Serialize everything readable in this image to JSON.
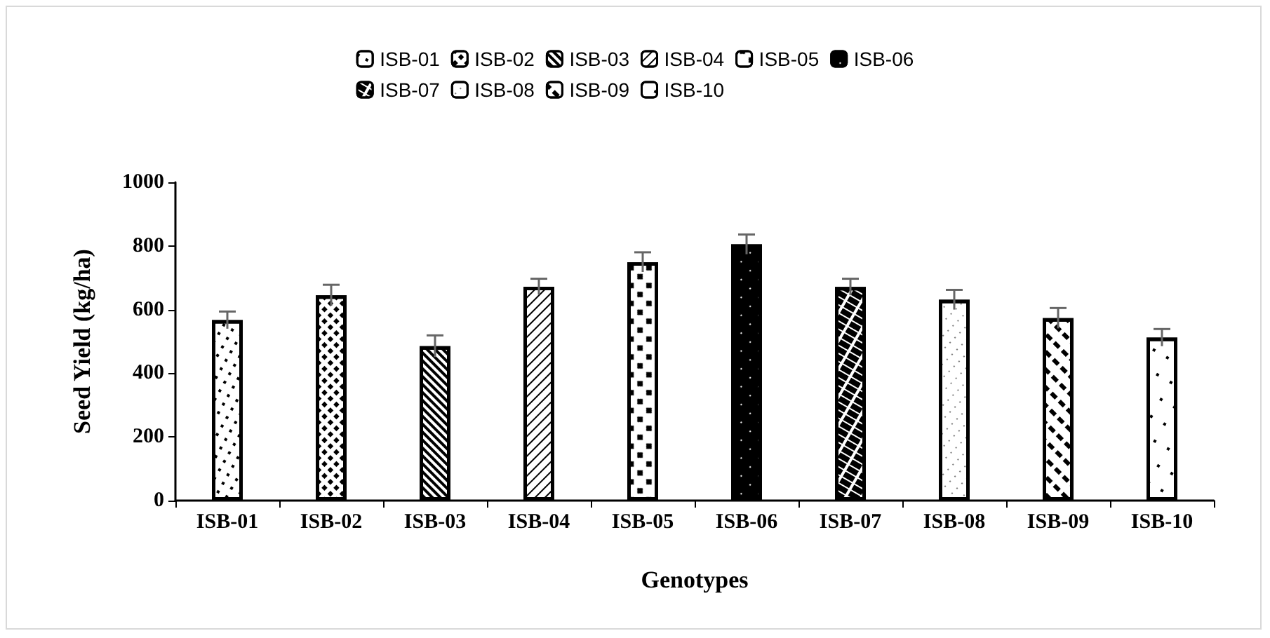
{
  "chart_data": {
    "type": "bar",
    "xlabel": "Genotypes",
    "ylabel": "Seed Yield (kg/ha)",
    "categories": [
      "ISB-01",
      "ISB-02",
      "ISB-03",
      "ISB-04",
      "ISB-05",
      "ISB-06",
      "ISB-07",
      "ISB-08",
      "ISB-09",
      "ISB-10"
    ],
    "series": [
      {
        "name": "ISB-01",
        "color": "#ffffff",
        "values": [
          567,
          null,
          null,
          null,
          null,
          null,
          null,
          null,
          null,
          null
        ],
        "errors": [
          27,
          null,
          null,
          null,
          null,
          null,
          null,
          null,
          null,
          null
        ]
      },
      {
        "name": "ISB-02",
        "color": "#ffffff",
        "values": [
          null,
          645,
          null,
          null,
          null,
          null,
          null,
          null,
          null,
          null
        ],
        "errors": [
          null,
          33,
          null,
          null,
          null,
          null,
          null,
          null,
          null,
          null
        ]
      },
      {
        "name": "ISB-03",
        "color": "#ffffff",
        "values": [
          null,
          null,
          485,
          null,
          null,
          null,
          null,
          null,
          null,
          null
        ],
        "errors": [
          null,
          null,
          34,
          null,
          null,
          null,
          null,
          null,
          null,
          null
        ]
      },
      {
        "name": "ISB-04",
        "color": "#ffffff",
        "values": [
          null,
          null,
          null,
          672,
          null,
          null,
          null,
          null,
          null,
          null
        ],
        "errors": [
          null,
          null,
          null,
          25,
          null,
          null,
          null,
          null,
          null,
          null
        ]
      },
      {
        "name": "ISB-05",
        "color": "#ffffff",
        "values": [
          null,
          null,
          null,
          null,
          749,
          null,
          null,
          null,
          null,
          null
        ],
        "errors": [
          null,
          null,
          null,
          null,
          31,
          null,
          null,
          null,
          null,
          null
        ]
      },
      {
        "name": "ISB-06",
        "color": "#000000",
        "values": [
          null,
          null,
          null,
          null,
          null,
          805,
          null,
          null,
          null,
          null
        ],
        "errors": [
          null,
          null,
          null,
          null,
          null,
          31,
          null,
          null,
          null,
          null
        ]
      },
      {
        "name": "ISB-07",
        "color": "#ffffff",
        "values": [
          null,
          null,
          null,
          null,
          null,
          null,
          671,
          null,
          null,
          null
        ],
        "errors": [
          null,
          null,
          null,
          null,
          null,
          null,
          26,
          null,
          null,
          null
        ]
      },
      {
        "name": "ISB-08",
        "color": "#ffffff",
        "values": [
          null,
          null,
          null,
          null,
          null,
          null,
          null,
          631,
          null,
          null
        ],
        "errors": [
          null,
          null,
          null,
          null,
          null,
          null,
          null,
          31,
          null,
          null
        ]
      },
      {
        "name": "ISB-09",
        "color": "#ffffff",
        "values": [
          null,
          null,
          null,
          null,
          null,
          null,
          null,
          null,
          573,
          null
        ],
        "errors": [
          null,
          null,
          null,
          null,
          null,
          null,
          null,
          null,
          32,
          null
        ]
      },
      {
        "name": "ISB-10",
        "color": "#ffffff",
        "values": [
          null,
          null,
          null,
          null,
          null,
          null,
          null,
          null,
          null,
          512
        ],
        "errors": [
          null,
          null,
          null,
          null,
          null,
          null,
          null,
          null,
          null,
          27
        ]
      }
    ],
    "ylim": [
      0,
      1000
    ],
    "yticks": [
      0,
      200,
      400,
      600,
      800,
      1000
    ],
    "grid": false,
    "legend": "top"
  }
}
